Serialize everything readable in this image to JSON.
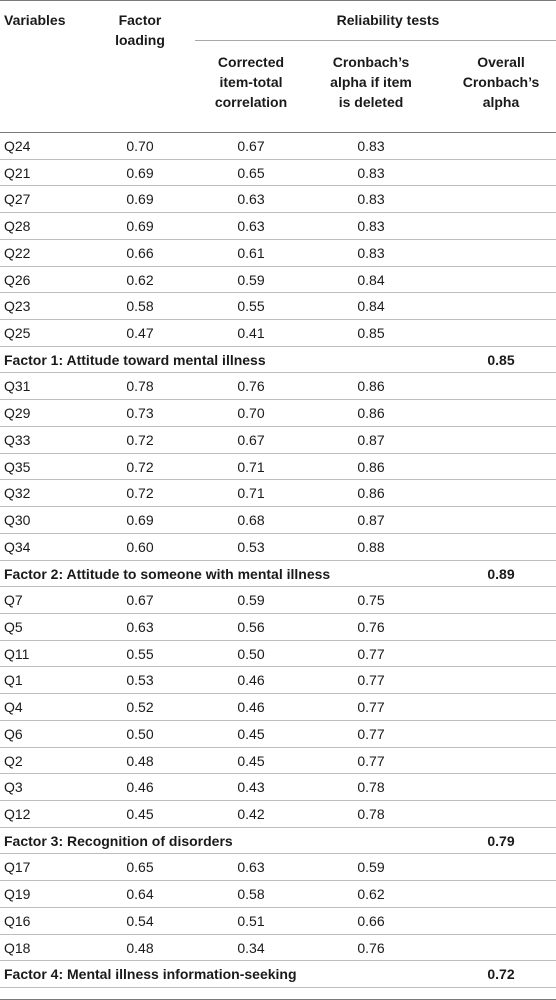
{
  "header": {
    "variables": "Variables",
    "factor_loading": "Factor\nloading",
    "reliability_tests": "Reliability tests",
    "corrected_item_total": "Corrected\nitem-total\ncorrelation",
    "alpha_if_deleted": "Cronbach’s\nalpha if item\nis deleted",
    "overall_alpha": "Overall\nCronbach’s\nalpha"
  },
  "rows": [
    {
      "type": "item",
      "var": "Q24",
      "fl": "0.70",
      "cor": "0.67",
      "cad": "0.83"
    },
    {
      "type": "item",
      "var": "Q21",
      "fl": "0.69",
      "cor": "0.65",
      "cad": "0.83"
    },
    {
      "type": "item",
      "var": "Q27",
      "fl": "0.69",
      "cor": "0.63",
      "cad": "0.83"
    },
    {
      "type": "item",
      "var": "Q28",
      "fl": "0.69",
      "cor": "0.63",
      "cad": "0.83"
    },
    {
      "type": "item",
      "var": "Q22",
      "fl": "0.66",
      "cor": "0.61",
      "cad": "0.83"
    },
    {
      "type": "item",
      "var": "Q26",
      "fl": "0.62",
      "cor": "0.59",
      "cad": "0.84"
    },
    {
      "type": "item",
      "var": "Q23",
      "fl": "0.58",
      "cor": "0.55",
      "cad": "0.84"
    },
    {
      "type": "item",
      "var": "Q25",
      "fl": "0.47",
      "cor": "0.41",
      "cad": "0.85"
    },
    {
      "type": "factor",
      "label": "Factor 1: Attitude toward mental illness",
      "alpha": "0.85"
    },
    {
      "type": "item",
      "var": "Q31",
      "fl": "0.78",
      "cor": "0.76",
      "cad": "0.86"
    },
    {
      "type": "item",
      "var": "Q29",
      "fl": "0.73",
      "cor": "0.70",
      "cad": "0.86"
    },
    {
      "type": "item",
      "var": "Q33",
      "fl": "0.72",
      "cor": "0.67",
      "cad": "0.87"
    },
    {
      "type": "item",
      "var": "Q35",
      "fl": "0.72",
      "cor": "0.71",
      "cad": "0.86"
    },
    {
      "type": "item",
      "var": "Q32",
      "fl": "0.72",
      "cor": "0.71",
      "cad": "0.86"
    },
    {
      "type": "item",
      "var": "Q30",
      "fl": "0.69",
      "cor": "0.68",
      "cad": "0.87"
    },
    {
      "type": "item",
      "var": "Q34",
      "fl": "0.60",
      "cor": "0.53",
      "cad": "0.88"
    },
    {
      "type": "factor",
      "label": "Factor 2: Attitude to someone with mental illness",
      "alpha": "0.89"
    },
    {
      "type": "item",
      "var": "Q7",
      "fl": "0.67",
      "cor": "0.59",
      "cad": "0.75"
    },
    {
      "type": "item",
      "var": "Q5",
      "fl": "0.63",
      "cor": "0.56",
      "cad": "0.76"
    },
    {
      "type": "item",
      "var": "Q11",
      "fl": "0.55",
      "cor": "0.50",
      "cad": "0.77"
    },
    {
      "type": "item",
      "var": "Q1",
      "fl": "0.53",
      "cor": "0.46",
      "cad": "0.77"
    },
    {
      "type": "item",
      "var": "Q4",
      "fl": "0.52",
      "cor": "0.46",
      "cad": "0.77"
    },
    {
      "type": "item",
      "var": "Q6",
      "fl": "0.50",
      "cor": "0.45",
      "cad": "0.77"
    },
    {
      "type": "item",
      "var": "Q2",
      "fl": "0.48",
      "cor": "0.45",
      "cad": "0.77"
    },
    {
      "type": "item",
      "var": "Q3",
      "fl": "0.46",
      "cor": "0.43",
      "cad": "0.78"
    },
    {
      "type": "item",
      "var": "Q12",
      "fl": "0.45",
      "cor": "0.42",
      "cad": "0.78"
    },
    {
      "type": "factor",
      "label": "Factor 3: Recognition of disorders",
      "alpha": "0.79"
    },
    {
      "type": "item",
      "var": "Q17",
      "fl": "0.65",
      "cor": "0.63",
      "cad": "0.59"
    },
    {
      "type": "item",
      "var": "Q19",
      "fl": "0.64",
      "cor": "0.58",
      "cad": "0.62"
    },
    {
      "type": "item",
      "var": "Q16",
      "fl": "0.54",
      "cor": "0.51",
      "cad": "0.66"
    },
    {
      "type": "item",
      "var": "Q18",
      "fl": "0.48",
      "cor": "0.34",
      "cad": "0.76"
    },
    {
      "type": "factor",
      "label": "Factor 4: Mental illness information-seeking",
      "alpha": "0.72"
    }
  ]
}
